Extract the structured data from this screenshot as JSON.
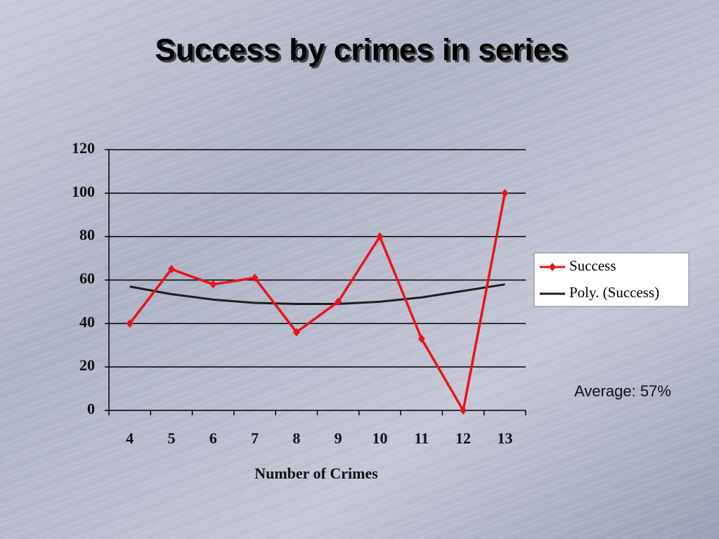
{
  "chart_data": {
    "type": "line",
    "title": "Success by crimes in series",
    "x_label": "Number of Crimes",
    "annotation": "Average: 57%",
    "categories": [
      "4",
      "5",
      "6",
      "7",
      "8",
      "9",
      "10",
      "11",
      "12",
      "13"
    ],
    "series": [
      {
        "name": "Success",
        "color": "#e8141b",
        "marker": "diamond",
        "values": [
          40,
          65,
          58,
          61,
          36,
          50,
          80,
          33,
          0,
          100
        ]
      },
      {
        "name": "Poly. (Success)",
        "color": "#1e1e1e",
        "values": [
          57,
          53.5,
          51,
          49.5,
          49,
          49,
          50,
          52,
          55,
          58
        ]
      }
    ],
    "ylim": [
      0,
      120
    ],
    "yticks": [
      0,
      20,
      40,
      60,
      80,
      100,
      120
    ],
    "grid": true,
    "legend": "right"
  }
}
